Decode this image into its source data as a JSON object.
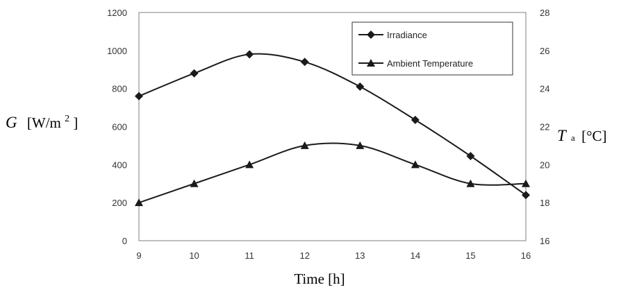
{
  "chart_data": {
    "type": "line",
    "title": "",
    "x": [
      9,
      10,
      11,
      12,
      13,
      14,
      15,
      16
    ],
    "xlabel": "Time [h]",
    "xlim": [
      9,
      16
    ],
    "x_ticks": [
      "9",
      "10",
      "11",
      "12",
      "13",
      "14",
      "15",
      "16"
    ],
    "y_left": {
      "label_symbol": "G",
      "label_unit": "[W/m",
      "label_exp": "2",
      "label_close": "]",
      "ylim": [
        0,
        1200
      ],
      "ticks": [
        "0",
        "200",
        "400",
        "600",
        "800",
        "1000",
        "1200"
      ]
    },
    "y_right": {
      "label_symbol": "T",
      "label_sub": "a",
      "label_unit": "[°C]",
      "ylim": [
        16,
        28
      ],
      "ticks": [
        "16",
        "18",
        "20",
        "22",
        "24",
        "26",
        "28"
      ]
    },
    "series": [
      {
        "name": "Irradiance",
        "axis": "left",
        "marker": "diamond",
        "values": [
          760,
          880,
          980,
          940,
          810,
          635,
          445,
          240
        ]
      },
      {
        "name": "Ambient Temperature",
        "axis": "right",
        "marker": "triangle",
        "values": [
          18,
          19,
          20,
          21,
          21,
          20,
          19,
          19
        ]
      }
    ],
    "grid": false,
    "legend_position": "top-right",
    "line_color": "#1a1a1a"
  }
}
